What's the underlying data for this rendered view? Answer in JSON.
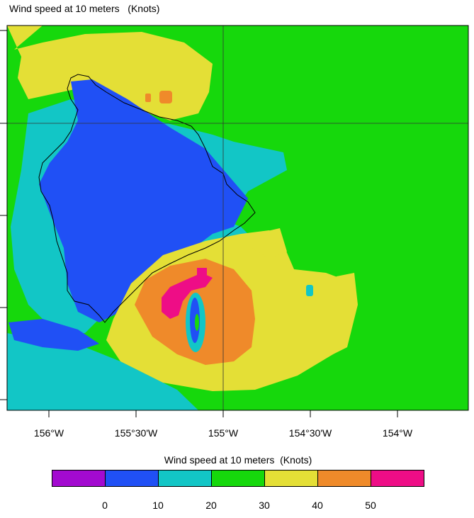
{
  "title": "Wind speed at 10 meters   (Knots)",
  "x_axis": {
    "ticks": [
      "156°W",
      "155°30'W",
      "155°W",
      "154°30'W",
      "154°W"
    ]
  },
  "colorbar": {
    "title": "Wind speed at 10 meters  (Knots)",
    "labels": [
      "0",
      "10",
      "20",
      "30",
      "40",
      "50"
    ],
    "colors": [
      "#a30ad0",
      "#2050f5",
      "#12c6c6",
      "#16d80c",
      "#e4df36",
      "#ef8a2a",
      "#ee0d86"
    ]
  },
  "map": {
    "background_level_color": "#16d80c",
    "coastline_color": "#000000",
    "features": [
      "island-coastline",
      "hurricane-eye",
      "gridlines"
    ]
  }
}
